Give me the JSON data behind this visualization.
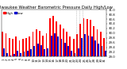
{
  "title": "Milwaukee Weather Barometric Pressure Daily High/Low",
  "high_color": "#ff0000",
  "low_color": "#0000cc",
  "background_color": "#ffffff",
  "ylim": [
    29.0,
    31.0
  ],
  "ytick_labels": [
    "29.0",
    "29.2",
    "29.4",
    "29.6",
    "29.8",
    "30.0",
    "30.2",
    "30.4",
    "30.6",
    "30.8",
    "31.0"
  ],
  "ytick_vals": [
    29.0,
    29.2,
    29.4,
    29.6,
    29.8,
    30.0,
    30.2,
    30.4,
    30.6,
    30.8,
    31.0
  ],
  "categories": [
    "1",
    "2",
    "3",
    "4",
    "5",
    "6",
    "7",
    "8",
    "9",
    "10",
    "11",
    "12",
    "13",
    "14",
    "15",
    "16",
    "17",
    "18",
    "19",
    "20",
    "21",
    "22",
    "23",
    "24",
    "25",
    "26",
    "27",
    "28",
    "29",
    "30",
    "31"
  ],
  "highs": [
    30.05,
    30.0,
    29.8,
    29.75,
    29.85,
    29.7,
    29.75,
    29.8,
    29.85,
    30.05,
    30.15,
    30.1,
    29.9,
    30.0,
    30.65,
    30.75,
    30.5,
    30.35,
    30.2,
    30.05,
    29.85,
    29.75,
    29.95,
    30.4,
    30.65,
    30.6,
    30.55,
    30.3,
    30.15,
    30.05,
    29.8
  ],
  "lows": [
    29.35,
    29.15,
    29.05,
    29.1,
    29.25,
    29.15,
    29.2,
    29.25,
    29.3,
    29.45,
    29.55,
    29.5,
    29.3,
    29.35,
    29.9,
    30.0,
    29.85,
    29.75,
    29.6,
    29.45,
    29.25,
    29.15,
    29.35,
    29.8,
    29.95,
    29.9,
    29.85,
    29.7,
    29.55,
    29.45,
    29.25
  ],
  "title_fontsize": 3.8,
  "tick_fontsize": 2.8,
  "legend_fontsize": 2.8,
  "dashed_vlines": [
    21.5,
    22.5,
    23.5
  ],
  "legend_labels": [
    "High",
    "Low"
  ],
  "bar_width": 0.42
}
